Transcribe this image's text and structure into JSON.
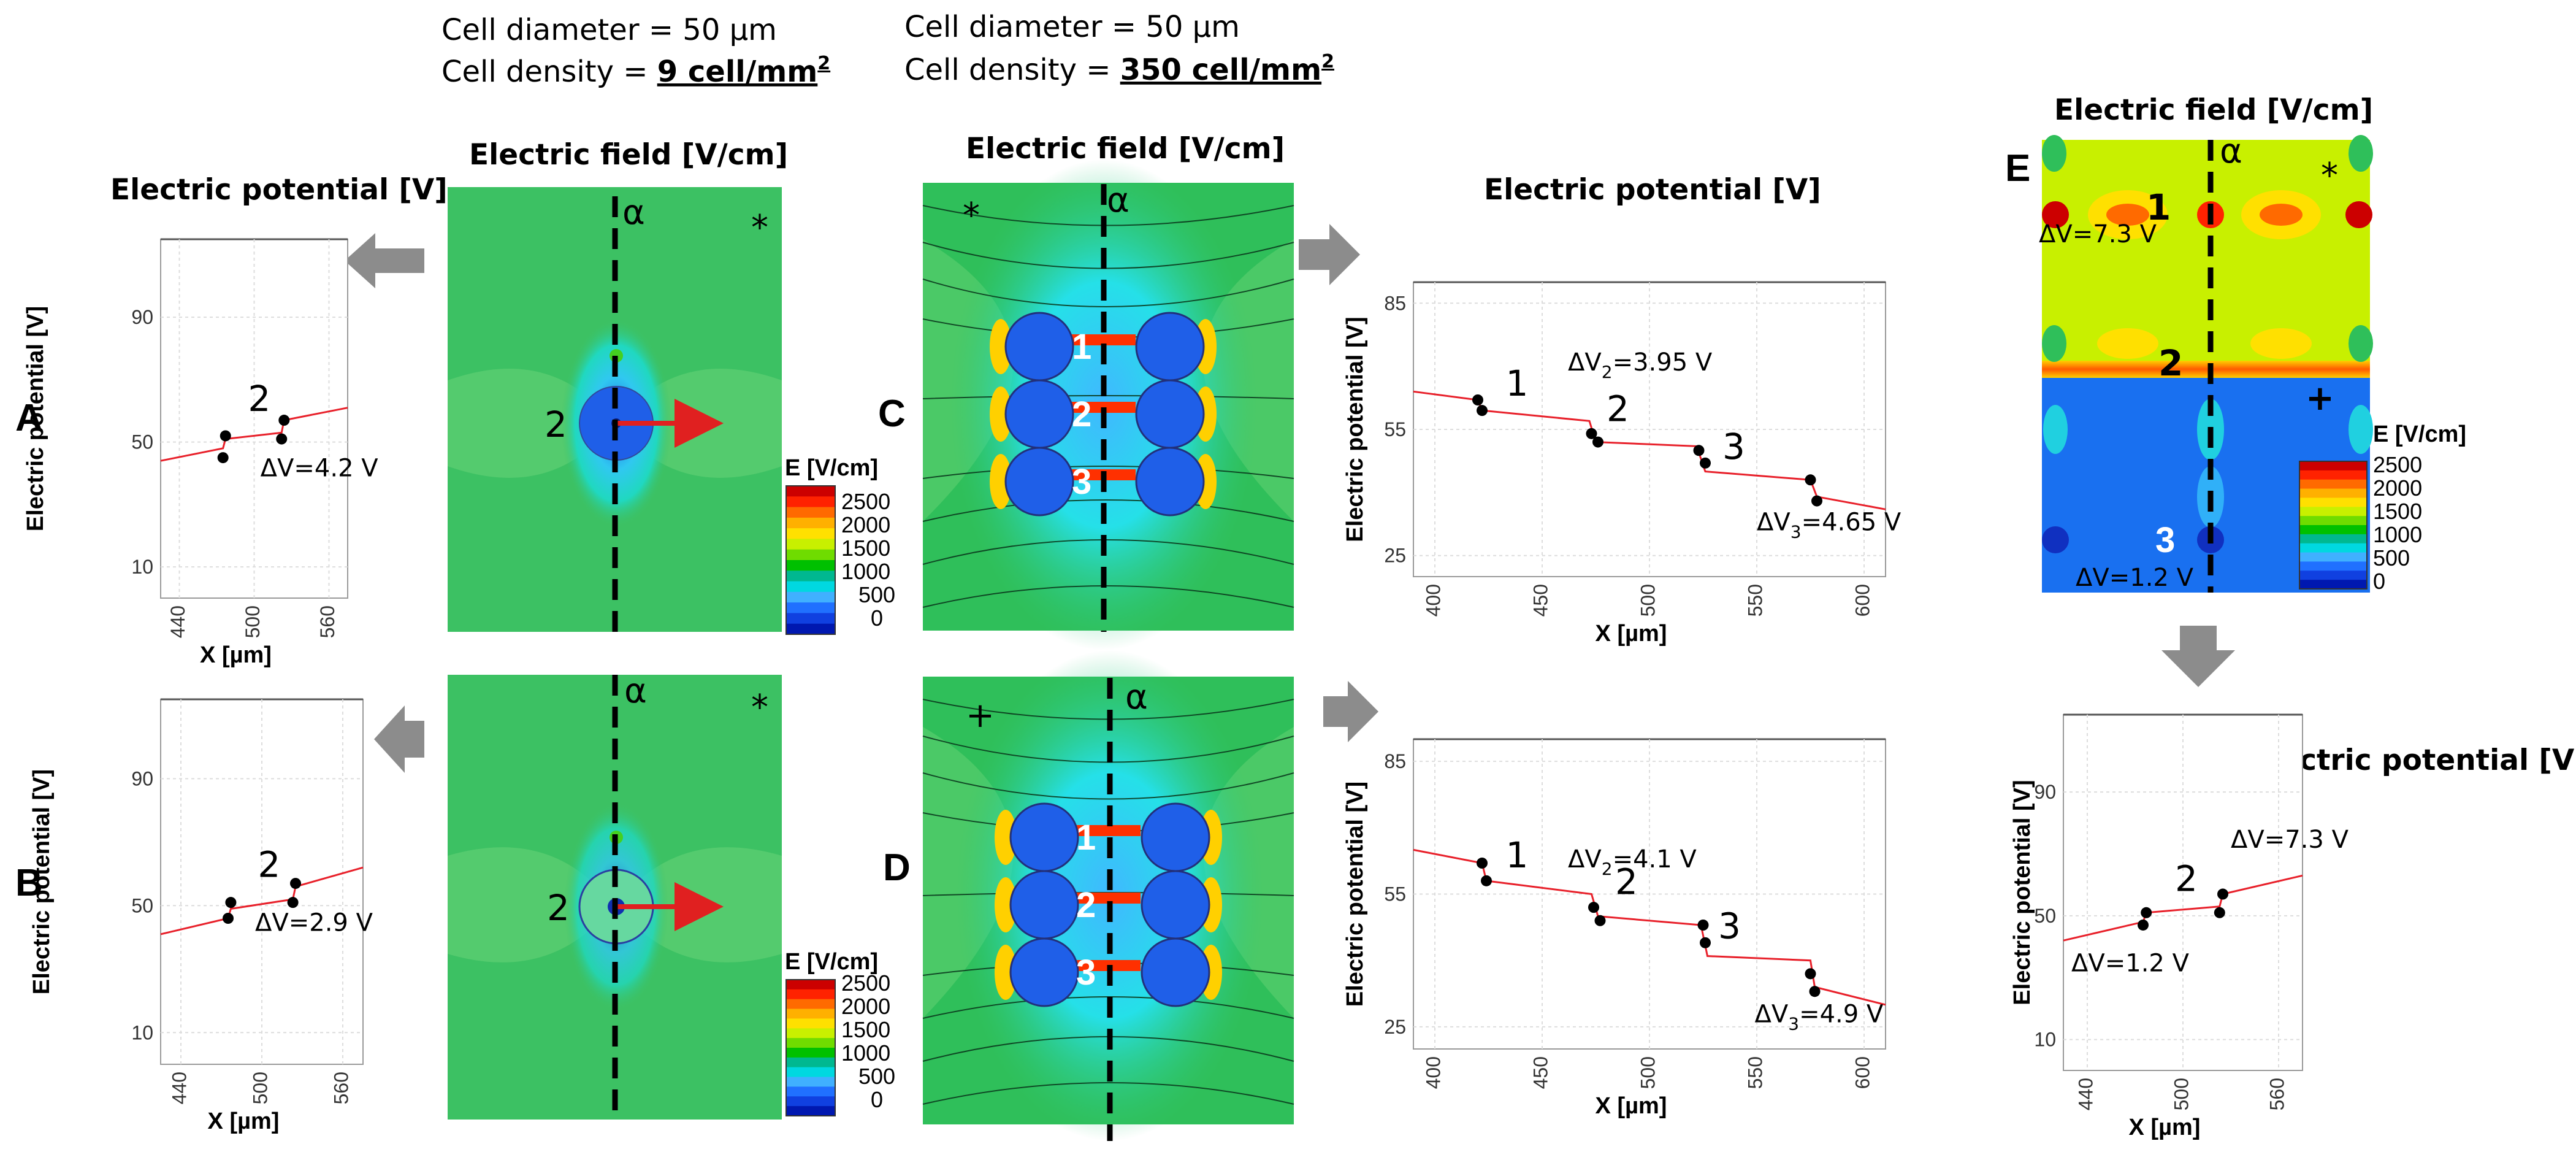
{
  "headers": [
    {
      "line1": "Cell diameter = 50 µm",
      "line2_prefix": "Cell density = ",
      "line2_value": "9 cell/mm",
      "sup": "2"
    },
    {
      "line1": "Cell diameter = 50 µm",
      "line2_prefix": "Cell density = ",
      "line2_value": "350 cell/mm",
      "sup": "2"
    }
  ],
  "titles": {
    "potential": "Electric potential [V]",
    "field": "Electric field [V/cm]"
  },
  "panel_labels": [
    "A",
    "B",
    "C",
    "D",
    "E"
  ],
  "symbols": {
    "alpha": "α",
    "star": "*",
    "plus": "+"
  },
  "colorbar": {
    "title": "E [V/cm]",
    "ticks": [
      "2500",
      "2000",
      "1500",
      "1000",
      "500",
      "0"
    ],
    "colors": [
      "#cc0000",
      "#ff2200",
      "#ff6a00",
      "#ffb000",
      "#ffe000",
      "#c8f000",
      "#6fdc00",
      "#00c000",
      "#00b890",
      "#00d8e0",
      "#40b0ff",
      "#2070ff",
      "#1040e0",
      "#0018b0"
    ]
  },
  "field_colors": {
    "uniform": "#3cc163",
    "light": "#6fd27a",
    "cyan": "#20e0e0",
    "cell": "#1f5fe8",
    "yellow": "#c8f000",
    "blue": "#1970f0"
  },
  "cell_numbers": {
    "one": "1",
    "two": "2",
    "three": "3"
  },
  "chart_data": [
    {
      "id": "A",
      "type": "line",
      "xlabel": "X [µm]",
      "ylabel": "Electric potential [V]",
      "xticks": [
        "440",
        "500",
        "560"
      ],
      "yticks": [
        "90",
        "50",
        "10"
      ],
      "xlim": [
        425,
        575
      ],
      "ylim": [
        0,
        115
      ],
      "series": [
        {
          "points": [
            [
              425,
              44
            ],
            [
              475,
              48
            ],
            [
              477,
              51
            ],
            [
              522,
              53
            ],
            [
              524,
              57
            ],
            [
              575,
              61
            ]
          ]
        }
      ],
      "markers": [
        [
          475,
          45
        ],
        [
          477,
          52
        ],
        [
          522,
          51
        ],
        [
          524,
          57
        ]
      ],
      "labels": [
        {
          "text": "2",
          "x": 495,
          "y": 60
        },
        {
          "text": "ΔV=4.2 V",
          "x": 505,
          "y": 39
        }
      ]
    },
    {
      "id": "B",
      "type": "line",
      "xlabel": "X [µm]",
      "ylabel": "Electric potential [V]",
      "xticks": [
        "440",
        "500",
        "560"
      ],
      "yticks": [
        "90",
        "50",
        "10"
      ],
      "xlim": [
        425,
        575
      ],
      "ylim": [
        0,
        115
      ],
      "series": [
        {
          "points": [
            [
              425,
              41
            ],
            [
              475,
              46
            ],
            [
              477,
              49
            ],
            [
              523,
              52
            ],
            [
              525,
              56
            ],
            [
              575,
              62
            ]
          ]
        }
      ],
      "markers": [
        [
          475,
          46
        ],
        [
          477,
          51
        ],
        [
          523,
          51
        ],
        [
          525,
          57
        ]
      ],
      "labels": [
        {
          "text": "2",
          "x": 497,
          "y": 59
        },
        {
          "text": "ΔV=2.9 V",
          "x": 495,
          "y": 42
        }
      ]
    },
    {
      "id": "C",
      "type": "line",
      "xlabel": "X [µm]",
      "ylabel": "Electric potential [V]",
      "xticks": [
        "400",
        "450",
        "500",
        "550",
        "600"
      ],
      "yticks": [
        "85",
        "55",
        "25"
      ],
      "xlim": [
        390,
        610
      ],
      "ylim": [
        20,
        90
      ],
      "series": [
        {
          "points": [
            [
              390,
              64
            ],
            [
              420,
              62
            ],
            [
              422,
              59.5
            ],
            [
              472,
              57
            ],
            [
              475,
              52
            ],
            [
              522,
              51
            ],
            [
              526,
              45
            ],
            [
              575,
              43
            ],
            [
              578,
              39
            ],
            [
              610,
              36
            ]
          ]
        }
      ],
      "markers": [
        [
          420,
          62
        ],
        [
          422,
          59.5
        ],
        [
          473,
          54
        ],
        [
          476,
          52
        ],
        [
          523,
          50
        ],
        [
          526,
          47
        ],
        [
          575,
          43
        ],
        [
          578,
          38
        ]
      ],
      "labels": [
        {
          "text": "1",
          "x": 433,
          "y": 63
        },
        {
          "text": "2",
          "x": 480,
          "y": 57
        },
        {
          "text": "3",
          "x": 534,
          "y": 48
        },
        {
          "text": "ΔV2=3.95 V",
          "x": 462,
          "y": 69
        },
        {
          "text": "ΔV3=4.65 V",
          "x": 550,
          "y": 31
        }
      ]
    },
    {
      "id": "D",
      "type": "line",
      "xlabel": "X [µm]",
      "ylabel": "Electric potential [V]",
      "xticks": [
        "400",
        "450",
        "500",
        "550",
        "600"
      ],
      "yticks": [
        "85",
        "55",
        "25"
      ],
      "xlim": [
        390,
        610
      ],
      "ylim": [
        20,
        90
      ],
      "series": [
        {
          "points": [
            [
              390,
              65
            ],
            [
              422,
              62
            ],
            [
              424,
              58
            ],
            [
              473,
              55
            ],
            [
              476,
              50
            ],
            [
              524,
              48
            ],
            [
              527,
              41
            ],
            [
              575,
              40
            ],
            [
              577,
              34
            ],
            [
              610,
              30
            ]
          ]
        }
      ],
      "markers": [
        [
          422,
          62
        ],
        [
          424,
          58
        ],
        [
          474,
          52
        ],
        [
          477,
          49
        ],
        [
          525,
          48
        ],
        [
          526,
          44
        ],
        [
          575,
          37
        ],
        [
          577,
          33
        ]
      ],
      "labels": [
        {
          "text": "1",
          "x": 433,
          "y": 61
        },
        {
          "text": "2",
          "x": 484,
          "y": 55
        },
        {
          "text": "3",
          "x": 532,
          "y": 45
        },
        {
          "text": "ΔV2=4.1 V",
          "x": 462,
          "y": 61
        },
        {
          "text": "ΔV3=4.9 V",
          "x": 549,
          "y": 26
        }
      ]
    },
    {
      "id": "E",
      "type": "line",
      "xlabel": "X [µm]",
      "ylabel": "Electric potential [V]",
      "xticks": [
        "440",
        "500",
        "560"
      ],
      "yticks": [
        "90",
        "50",
        "10"
      ],
      "xlim": [
        425,
        575
      ],
      "ylim": [
        0,
        115
      ],
      "series": [
        {
          "points": [
            [
              425,
              42
            ],
            [
              475,
              48
            ],
            [
              477,
              51
            ],
            [
              523,
              53
            ],
            [
              525,
              57
            ],
            [
              575,
              63
            ]
          ]
        }
      ],
      "markers": [
        [
          475,
          47
        ],
        [
          477,
          51
        ],
        [
          523,
          51
        ],
        [
          525,
          57
        ]
      ],
      "labels": [
        {
          "text": "2",
          "x": 495,
          "y": 58
        },
        {
          "text": "ΔV=7.3 V",
          "x": 530,
          "y": 72
        },
        {
          "text": "ΔV=1.2 V",
          "x": 430,
          "y": 32
        }
      ]
    }
  ],
  "field_maps": [
    {
      "id": "A",
      "cell_label": "2"
    },
    {
      "id": "B",
      "cell_label": "2"
    },
    {
      "id": "C",
      "cell_labels": [
        "1",
        "2",
        "3"
      ]
    },
    {
      "id": "D",
      "cell_labels": [
        "1",
        "2",
        "3"
      ]
    },
    {
      "id": "E",
      "cell_labels": [
        "1",
        "2",
        "3"
      ],
      "annotations": [
        "ΔV=7.3 V",
        "ΔV=1.2 V"
      ]
    }
  ]
}
